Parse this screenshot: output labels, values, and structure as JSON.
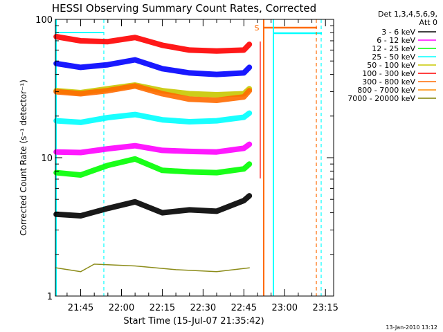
{
  "chart_data": {
    "type": "line",
    "title": "HESSI Observing Summary Count Rates, Corrected",
    "xlabel": "Start Time (15-Jul-07 21:35:42)",
    "ylabel": "Corrected Count Rate (s⁻¹ detector⁻¹)",
    "y_scale": "log",
    "ylim": [
      1,
      100
    ],
    "y_ticks": [
      "1",
      "10",
      "100"
    ],
    "xlim": [
      "21:35:42",
      "23:18:00"
    ],
    "x_ticks": [
      "21:45",
      "22:00",
      "22:15",
      "22:30",
      "22:45",
      "23:00",
      "23:15"
    ],
    "legend_header": [
      "Det 1,3,4,5,6,9,",
      "Att 0"
    ],
    "legend_position": "right",
    "timestamp": "13-Jan-2010 13:12",
    "series": [
      {
        "name": "3 - 6 keV",
        "color": "#000000",
        "x": [
          "21:36",
          "21:45",
          "21:55",
          "22:05",
          "22:15",
          "22:25",
          "22:35",
          "22:45",
          "22:47"
        ],
        "values": [
          3.9,
          3.8,
          4.3,
          4.8,
          4.0,
          4.2,
          4.1,
          4.9,
          5.3
        ]
      },
      {
        "name": "6 - 12 keV",
        "color": "#ff00ff",
        "x": [
          "21:36",
          "21:45",
          "21:55",
          "22:05",
          "22:15",
          "22:25",
          "22:35",
          "22:45",
          "22:47"
        ],
        "values": [
          11.0,
          10.9,
          11.6,
          12.2,
          11.3,
          11.1,
          11.0,
          11.7,
          12.5
        ]
      },
      {
        "name": "12 - 25 keV",
        "color": "#00ff00",
        "x": [
          "21:36",
          "21:45",
          "21:55",
          "22:05",
          "22:15",
          "22:25",
          "22:35",
          "22:45",
          "22:47"
        ],
        "values": [
          7.8,
          7.5,
          8.8,
          9.8,
          8.1,
          7.9,
          7.8,
          8.3,
          9.0
        ]
      },
      {
        "name": "25 - 50 keV",
        "color": "#00ffff",
        "x": [
          "21:36",
          "21:45",
          "21:55",
          "22:05",
          "22:15",
          "22:25",
          "22:35",
          "22:45",
          "22:47"
        ],
        "values": [
          18.5,
          18.0,
          19.5,
          20.5,
          18.8,
          18.2,
          18.5,
          19.6,
          21.0
        ]
      },
      {
        "name": "50 - 100 keV",
        "color": "#c8c800",
        "x": [
          "21:36",
          "21:45",
          "21:55",
          "22:05",
          "22:15",
          "22:25",
          "22:35",
          "22:45",
          "22:47"
        ],
        "values": [
          30.5,
          29.5,
          31.5,
          33.5,
          30.5,
          29.0,
          28.5,
          29.0,
          31.5
        ]
      },
      {
        "name": "100 - 300 keV",
        "color": "#ff0000",
        "x": [
          "21:36",
          "21:45",
          "21:55",
          "22:05",
          "22:15",
          "22:25",
          "22:35",
          "22:45",
          "22:47"
        ],
        "values": [
          75,
          70,
          69,
          74,
          65,
          60,
          59,
          60,
          66
        ]
      },
      {
        "name": "300 - 800 keV",
        "color": "#ff6a00",
        "x": [
          "21:36",
          "21:45",
          "21:55",
          "22:05",
          "22:15",
          "22:25",
          "22:35",
          "22:45",
          "22:47"
        ],
        "values": [
          30.0,
          29.0,
          30.5,
          33.0,
          29.0,
          26.5,
          26.0,
          27.5,
          30.5
        ]
      },
      {
        "name": "800 - 7000 keV",
        "color": "#ff8c00",
        "x": [],
        "values": []
      },
      {
        "name": "7000 - 20000 keV",
        "color": "#808000",
        "x": [
          "21:36",
          "21:45",
          "21:50",
          "22:05",
          "22:20",
          "22:35",
          "22:47"
        ],
        "values": [
          1.6,
          1.5,
          1.7,
          1.65,
          1.55,
          1.5,
          1.6
        ]
      },
      {
        "name": "",
        "color": "#0000ff",
        "x": [
          "21:36",
          "21:45",
          "21:55",
          "22:05",
          "22:15",
          "22:25",
          "22:35",
          "22:45",
          "22:47"
        ],
        "values": [
          48,
          45,
          47,
          51,
          44,
          41,
          40,
          41,
          45
        ]
      }
    ],
    "flag_s_label": "S"
  }
}
